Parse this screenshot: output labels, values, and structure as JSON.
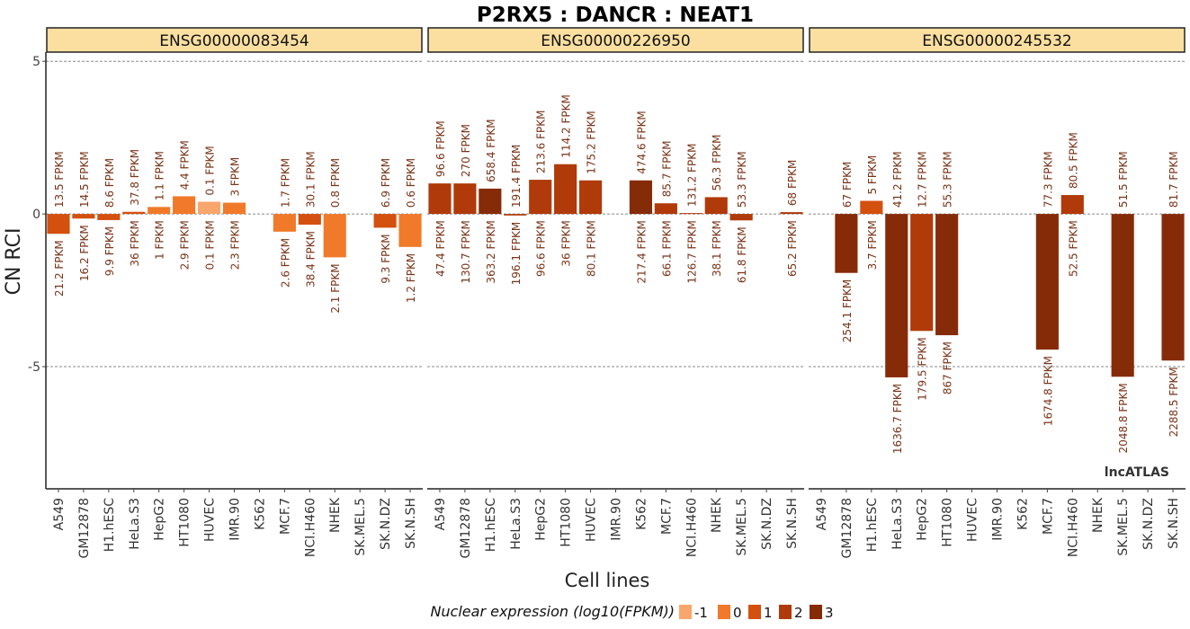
{
  "chart_data": {
    "type": "bar",
    "title": "P2RX5 : DANCR : NEAT1",
    "xlabel": "Cell lines",
    "ylabel": "CN RCI",
    "ylim": [
      -9,
      5.3
    ],
    "yticks": [
      5,
      0,
      -5
    ],
    "watermark": "lncATLAS",
    "legend": {
      "title": "Nuclear expression (log10(FPKM))",
      "position": "bottom",
      "items": [
        {
          "label": "-1",
          "color": "#F9A66C"
        },
        {
          "label": "0",
          "color": "#F07A2A"
        },
        {
          "label": "1",
          "color": "#D4500E"
        },
        {
          "label": "2",
          "color": "#B03A09"
        },
        {
          "label": "3",
          "color": "#862B08"
        }
      ]
    },
    "categories": [
      "A549",
      "GM12878",
      "H1.hESC",
      "HeLa.S3",
      "HepG2",
      "HT1080",
      "HUVEC",
      "IMR.90",
      "K562",
      "MCF.7",
      "NCI.H460",
      "NHEK",
      "SK.MEL.5",
      "SK.N.DZ",
      "SK.N.SH"
    ],
    "panels": [
      {
        "name": "ENSG00000083454",
        "bars": [
          {
            "cell": "A549",
            "value": -0.65,
            "level": 1,
            "cyto": "13.5 FPKM",
            "nuc": "21.2 FPKM"
          },
          {
            "cell": "GM12878",
            "value": -0.15,
            "level": 1,
            "cyto": "14.5 FPKM",
            "nuc": "16.2 FPKM"
          },
          {
            "cell": "H1.hESC",
            "value": -0.2,
            "level": 1,
            "cyto": "8.6 FPKM",
            "nuc": "9.9 FPKM"
          },
          {
            "cell": "HeLa.S3",
            "value": 0.07,
            "level": 1,
            "cyto": "37.8 FPKM",
            "nuc": "36 FPKM"
          },
          {
            "cell": "HepG2",
            "value": 0.23,
            "level": 0,
            "cyto": "1.1 FPKM",
            "nuc": "1 FPKM"
          },
          {
            "cell": "HT1080",
            "value": 0.58,
            "level": 0,
            "cyto": "4.4 FPKM",
            "nuc": "2.9 FPKM"
          },
          {
            "cell": "HUVEC",
            "value": 0.4,
            "level": -1,
            "cyto": "0.1 FPKM",
            "nuc": "0.1 FPKM"
          },
          {
            "cell": "IMR.90",
            "value": 0.37,
            "level": 0,
            "cyto": "3 FPKM",
            "nuc": "2.3 FPKM"
          },
          {
            "cell": "K562",
            "value": null
          },
          {
            "cell": "MCF.7",
            "value": -0.58,
            "level": 0,
            "cyto": "1.7 FPKM",
            "nuc": "2.6 FPKM"
          },
          {
            "cell": "NCI.H460",
            "value": -0.35,
            "level": 1,
            "cyto": "30.1 FPKM",
            "nuc": "38.4 FPKM"
          },
          {
            "cell": "NHEK",
            "value": -1.42,
            "level": 0,
            "cyto": "0.8 FPKM",
            "nuc": "2.1 FPKM"
          },
          {
            "cell": "SK.MEL.5",
            "value": null
          },
          {
            "cell": "SK.N.DZ",
            "value": -0.45,
            "level": 1,
            "cyto": "6.9 FPKM",
            "nuc": "9.3 FPKM"
          },
          {
            "cell": "SK.N.SH",
            "value": -1.08,
            "level": 0,
            "cyto": "0.6 FPKM",
            "nuc": "1.2 FPKM"
          }
        ]
      },
      {
        "name": "ENSG00000226950",
        "bars": [
          {
            "cell": "A549",
            "value": 1.0,
            "level": 2,
            "cyto": "96.6 FPKM",
            "nuc": "47.4 FPKM"
          },
          {
            "cell": "GM12878",
            "value": 1.0,
            "level": 2,
            "cyto": "270 FPKM",
            "nuc": "130.7 FPKM"
          },
          {
            "cell": "H1.hESC",
            "value": 0.83,
            "level": 3,
            "cyto": "658.4 FPKM",
            "nuc": "363.2 FPKM"
          },
          {
            "cell": "HeLa.S3",
            "value": -0.05,
            "level": 2,
            "cyto": "191.4 FPKM",
            "nuc": "196.1 FPKM"
          },
          {
            "cell": "HepG2",
            "value": 1.12,
            "level": 2,
            "cyto": "213.6 FPKM",
            "nuc": "96.6 FPKM"
          },
          {
            "cell": "HT1080",
            "value": 1.63,
            "level": 2,
            "cyto": "114.2 FPKM",
            "nuc": "36 FPKM"
          },
          {
            "cell": "HUVEC",
            "value": 1.1,
            "level": 2,
            "cyto": "175.2 FPKM",
            "nuc": "80.1 FPKM"
          },
          {
            "cell": "IMR.90",
            "value": null
          },
          {
            "cell": "K562",
            "value": 1.1,
            "level": 3,
            "cyto": "474.6 FPKM",
            "nuc": "217.4 FPKM"
          },
          {
            "cell": "MCF.7",
            "value": 0.35,
            "level": 2,
            "cyto": "85.7 FPKM",
            "nuc": "66.1 FPKM"
          },
          {
            "cell": "NCI.H460",
            "value": 0.03,
            "level": 2,
            "cyto": "131.2 FPKM",
            "nuc": "126.7 FPKM"
          },
          {
            "cell": "NHEK",
            "value": 0.55,
            "level": 2,
            "cyto": "56.3 FPKM",
            "nuc": "38.1 FPKM"
          },
          {
            "cell": "SK.MEL.5",
            "value": -0.21,
            "level": 2,
            "cyto": "53.3 FPKM",
            "nuc": "61.8 FPKM"
          },
          {
            "cell": "SK.N.DZ",
            "value": null
          },
          {
            "cell": "SK.N.SH",
            "value": 0.06,
            "level": 2,
            "cyto": "68 FPKM",
            "nuc": "65.2 FPKM"
          }
        ]
      },
      {
        "name": "ENSG00000245532",
        "bars": [
          {
            "cell": "A549",
            "value": null
          },
          {
            "cell": "GM12878",
            "value": -1.93,
            "level": 3,
            "cyto": "67 FPKM",
            "nuc": "254.1 FPKM"
          },
          {
            "cell": "H1.hESC",
            "value": 0.43,
            "level": 1,
            "cyto": "5 FPKM",
            "nuc": "3.7 FPKM"
          },
          {
            "cell": "HeLa.S3",
            "value": -5.35,
            "level": 3,
            "cyto": "41.2 FPKM",
            "nuc": "1636.7 FPKM"
          },
          {
            "cell": "HepG2",
            "value": -3.83,
            "level": 2,
            "cyto": "12.7 FPKM",
            "nuc": "179.5 FPKM"
          },
          {
            "cell": "HT1080",
            "value": -3.97,
            "level": 3,
            "cyto": "55.3 FPKM",
            "nuc": "867 FPKM"
          },
          {
            "cell": "HUVEC",
            "value": null
          },
          {
            "cell": "IMR.90",
            "value": null
          },
          {
            "cell": "K562",
            "value": null
          },
          {
            "cell": "MCF.7",
            "value": -4.44,
            "level": 3,
            "cyto": "77.3 FPKM",
            "nuc": "1674.8 FPKM"
          },
          {
            "cell": "NCI.H460",
            "value": 0.62,
            "level": 2,
            "cyto": "80.5 FPKM",
            "nuc": "52.5 FPKM"
          },
          {
            "cell": "NHEK",
            "value": null
          },
          {
            "cell": "SK.MEL.5",
            "value": -5.33,
            "level": 3,
            "cyto": "51.5 FPKM",
            "nuc": "2048.8 FPKM"
          },
          {
            "cell": "SK.N.DZ",
            "value": null
          },
          {
            "cell": "SK.N.SH",
            "value": -4.8,
            "level": 3,
            "cyto": "81.7 FPKM",
            "nuc": "2288.5 FPKM"
          }
        ]
      }
    ]
  }
}
